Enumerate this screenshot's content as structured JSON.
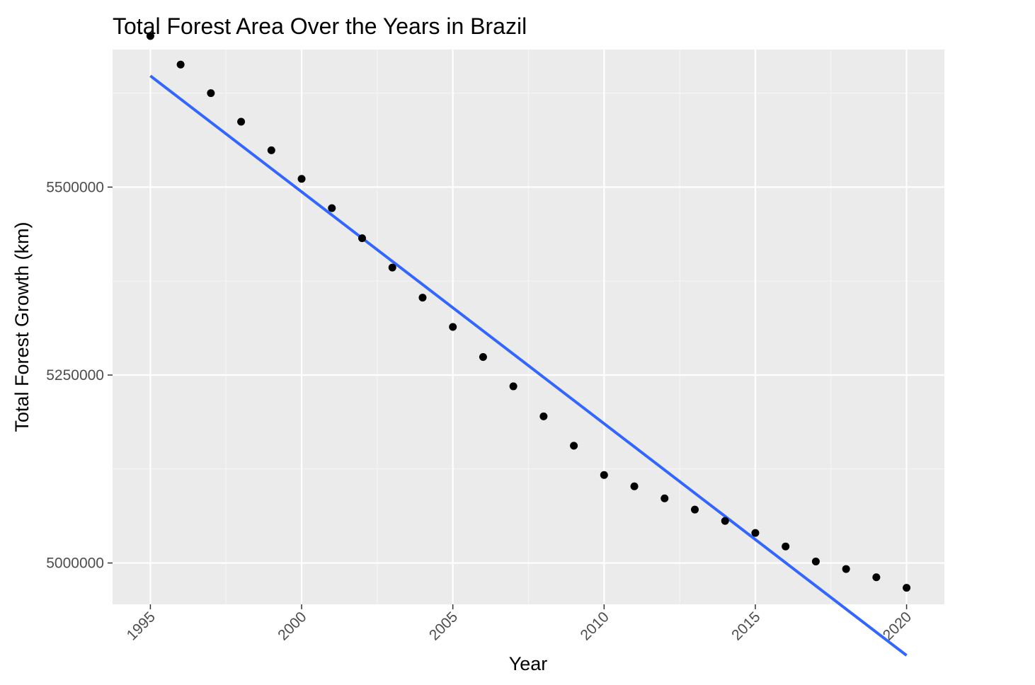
{
  "chart_data": {
    "type": "scatter",
    "title": "Total Forest Area Over the Years in Brazil",
    "xlabel": "Year",
    "ylabel": "Total Forest Growth (km)",
    "xlim": [
      1993.75,
      2021.25
    ],
    "ylim": [
      4945000,
      5683000
    ],
    "x_ticks": [
      1995,
      2000,
      2005,
      2010,
      2015,
      2020
    ],
    "x_minor_ticks": [
      1997.5,
      2002.5,
      2007.5,
      2012.5,
      2017.5
    ],
    "y_ticks": [
      5000000,
      5250000,
      5500000
    ],
    "y_tick_labels": [
      "5000000",
      "5250000",
      "5500000"
    ],
    "y_minor_ticks": [
      4875000,
      5125000,
      5375000,
      5625000
    ],
    "grid": true,
    "legend": "none",
    "x_tick_rotation_deg": 45,
    "series": [
      {
        "kind": "points",
        "color": "#000000",
        "x": [
          1995,
          1996,
          1997,
          1998,
          1999,
          2000,
          2001,
          2002,
          2003,
          2004,
          2005,
          2006,
          2007,
          2008,
          2009,
          2010,
          2011,
          2012,
          2013,
          2014,
          2015,
          2016,
          2017,
          2018,
          2019,
          2020
        ],
        "y": [
          5701000,
          5663000,
          5625000,
          5587000,
          5549000,
          5511000,
          5472000,
          5432000,
          5393000,
          5353000,
          5314000,
          5274000,
          5235000,
          5195000,
          5156000,
          5117000,
          5102000,
          5086000,
          5071000,
          5056000,
          5040000,
          5022000,
          5002000,
          4992000,
          4981000,
          4967000
        ]
      },
      {
        "kind": "trend-line",
        "color": "#3366FF",
        "x": [
          1995,
          2020
        ],
        "y": [
          5648000,
          4877000
        ]
      }
    ]
  },
  "colors": {
    "panel_background": "#EBEBEB",
    "grid_major": "#FFFFFF",
    "grid_minor": "#F5F5F5",
    "points": "#000000",
    "trend_line": "#3366FF",
    "tick_text": "#4D4D4D"
  }
}
